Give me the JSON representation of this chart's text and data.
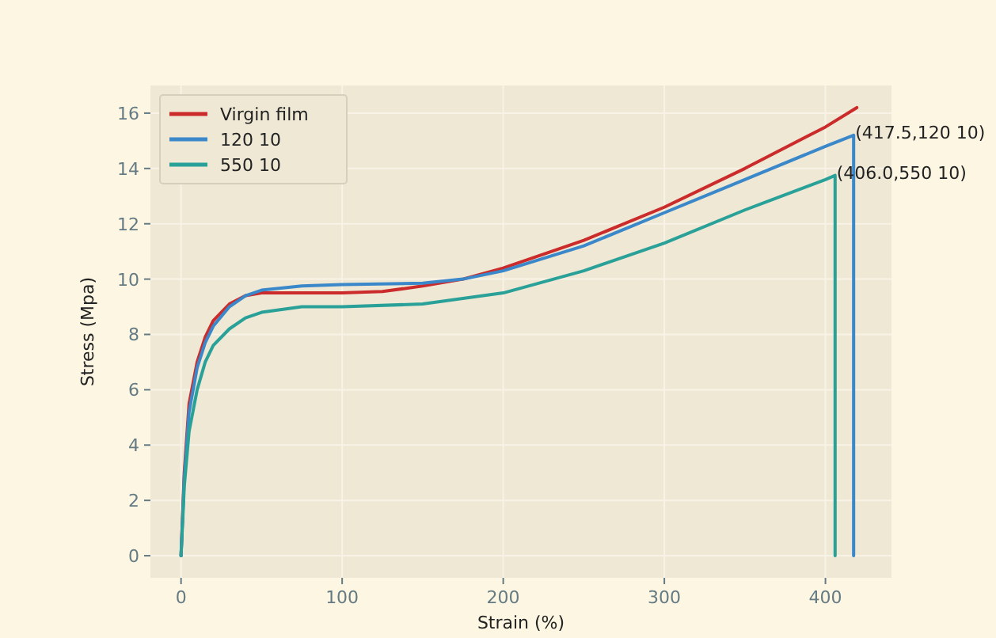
{
  "chart_data": {
    "type": "line",
    "xlabel": "Strain (%)",
    "ylabel": "Stress (Mpa)",
    "xlim": [
      -19,
      441
    ],
    "ylim": [
      -0.8,
      17
    ],
    "xticks": [
      0,
      100,
      200,
      300,
      400
    ],
    "yticks": [
      0,
      2,
      4,
      6,
      8,
      10,
      12,
      14,
      16
    ],
    "grid": true,
    "legend": "top left",
    "line_style": "solid",
    "marker": "none",
    "series": [
      {
        "name": "Virgin film",
        "color": "#cb2b2b",
        "x": [
          0,
          2,
          5,
          10,
          15,
          20,
          30,
          40,
          50,
          75,
          100,
          125,
          150,
          175,
          200,
          250,
          300,
          350,
          400,
          419.5
        ],
        "values": [
          0,
          3,
          5.5,
          7,
          7.9,
          8.5,
          9.1,
          9.4,
          9.5,
          9.5,
          9.5,
          9.55,
          9.75,
          10.0,
          10.4,
          11.4,
          12.6,
          14,
          15.5,
          16.2
        ]
      },
      {
        "name": "120 10",
        "color": "#3a87c9",
        "x": [
          0,
          2,
          5,
          10,
          15,
          20,
          30,
          40,
          50,
          75,
          100,
          150,
          175,
          200,
          250,
          300,
          350,
          400,
          417.5,
          417.5
        ],
        "values": [
          0,
          2.8,
          5.2,
          6.8,
          7.7,
          8.3,
          9.0,
          9.4,
          9.6,
          9.75,
          9.8,
          9.85,
          10.0,
          10.3,
          11.2,
          12.4,
          13.6,
          14.8,
          15.2,
          0
        ]
      },
      {
        "name": "550 10",
        "color": "#2aa198",
        "x": [
          0,
          2,
          5,
          10,
          15,
          20,
          30,
          40,
          50,
          75,
          100,
          150,
          200,
          250,
          300,
          350,
          400,
          406,
          406
        ],
        "values": [
          0,
          2.5,
          4.5,
          6,
          7,
          7.6,
          8.2,
          8.6,
          8.8,
          9.0,
          9.0,
          9.1,
          9.5,
          10.3,
          11.3,
          12.5,
          13.6,
          13.75,
          0
        ]
      }
    ],
    "annotations": [
      {
        "text": "(417.5,120 10)",
        "x": 417.5,
        "y": 15.2
      },
      {
        "text": "(406.0,550 10)",
        "x": 406,
        "y": 13.75
      }
    ]
  }
}
